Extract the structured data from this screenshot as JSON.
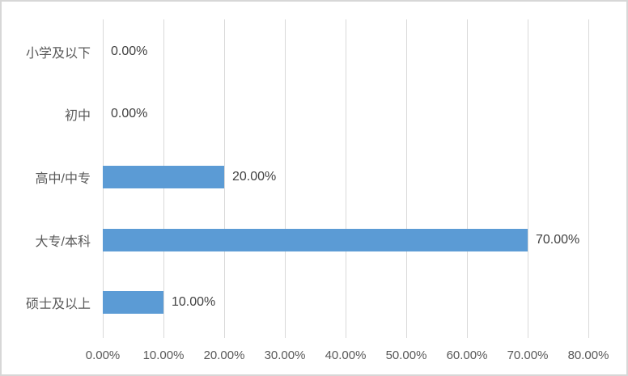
{
  "chart_data": {
    "type": "bar",
    "orientation": "horizontal",
    "title": "",
    "xlabel": "",
    "ylabel": "",
    "categories": [
      "小学及以下",
      "初中",
      "高中/中专",
      "大专/本科",
      "硕士及以上"
    ],
    "values": [
      0,
      0,
      20,
      70,
      10
    ],
    "data_labels": [
      "0.00%",
      "0.00%",
      "20.00%",
      "70.00%",
      "10.00%"
    ],
    "x_ticks": [
      "0.00%",
      "10.00%",
      "20.00%",
      "30.00%",
      "40.00%",
      "50.00%",
      "60.00%",
      "70.00%",
      "80.00%"
    ],
    "xlim": [
      0,
      80
    ],
    "grid": true,
    "legend": false,
    "colors": {
      "bar": "#5b9bd5",
      "gridline": "#d9d9d9",
      "axis_text": "#595959",
      "category_text": "#595959",
      "data_label_text": "#404040",
      "frame_border": "#d7d7d7",
      "background": "#ffffff"
    }
  }
}
